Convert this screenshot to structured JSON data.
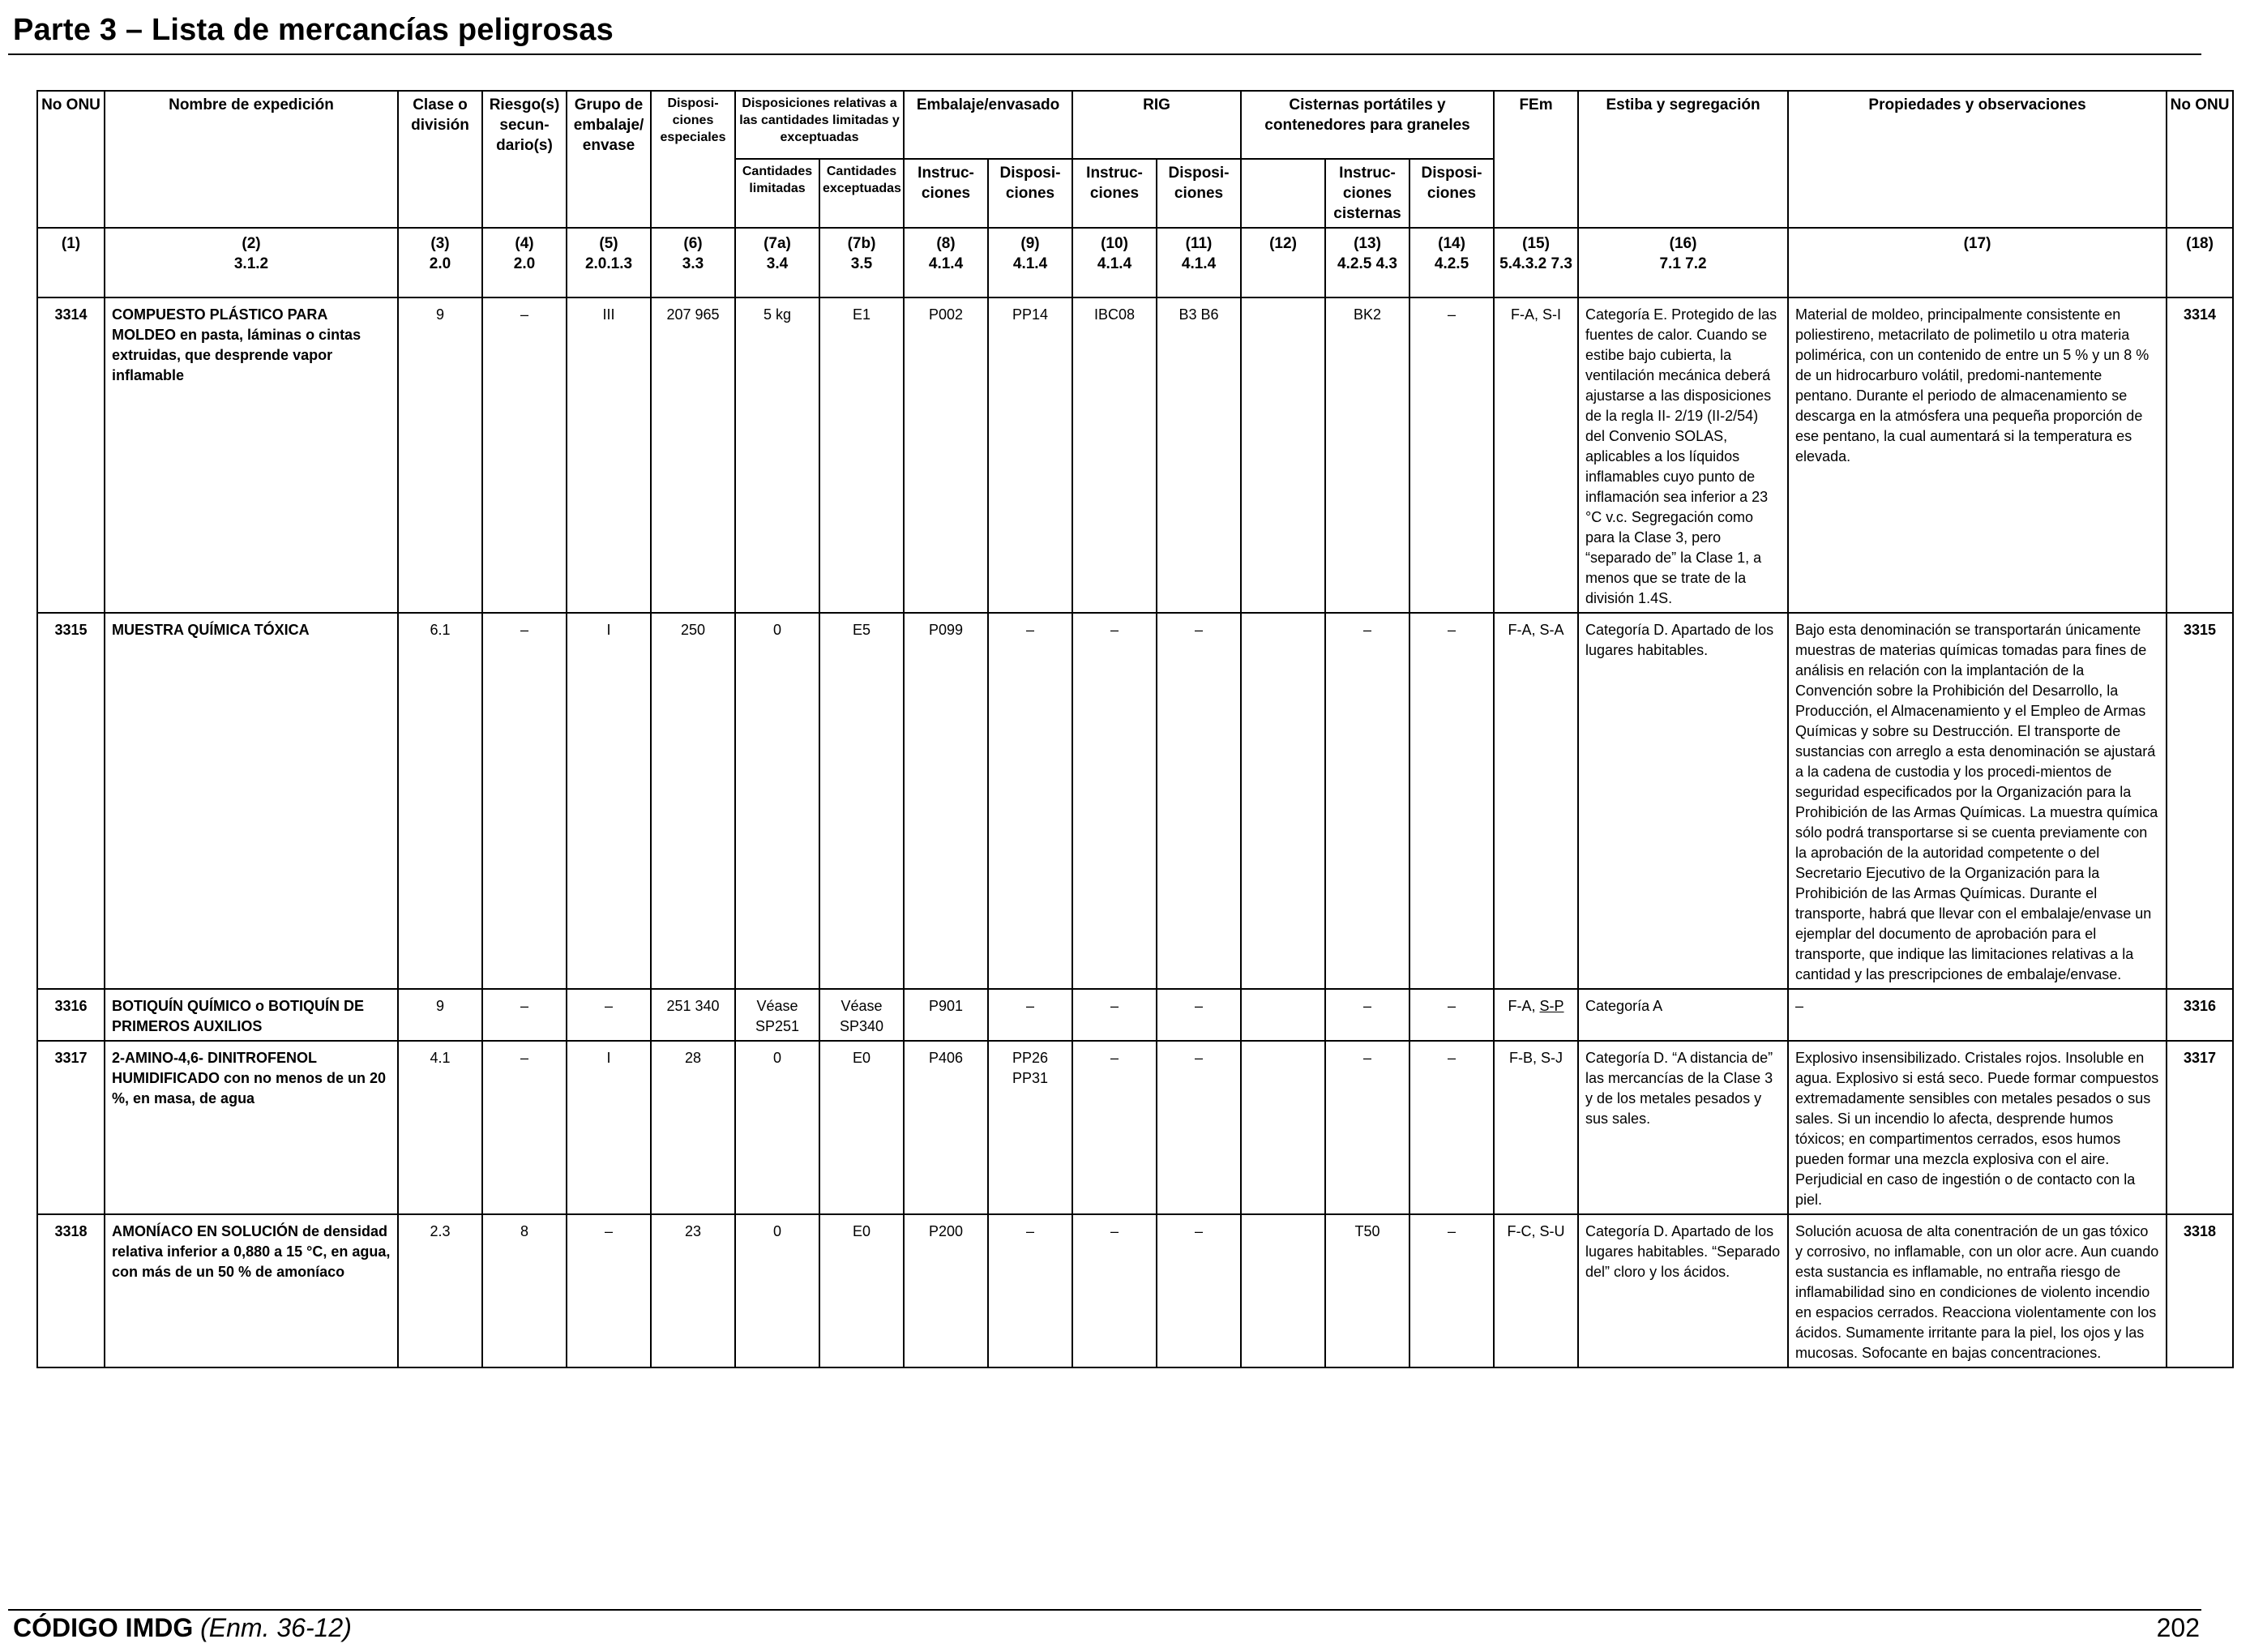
{
  "header": {
    "title": "Parte 3 – Lista de mercancías peligrosas"
  },
  "table": {
    "head": {
      "no_onu": "No ONU",
      "nombre": "Nombre de expedición",
      "clase": "Clase o división",
      "riesgo": "Riesgo(s) secun-dario(s)",
      "grupo": "Grupo de embalaje/ envase",
      "disp_esp": "Disposi-ciones especiales",
      "disp_rel": "Disposiciones relativas a las cantidades limitadas y exceptuadas",
      "cant_lim": "Cantidades limitadas",
      "cant_exc": "Cantidades exceptuadas",
      "embalaje": "Embalaje/envasado",
      "emb_instr": "Instruc-ciones",
      "emb_disp": "Disposi-ciones",
      "rig": "RIG",
      "rig_instr": "Instruc-ciones",
      "rig_disp": "Disposi-ciones",
      "cisternas": "Cisternas portátiles y contenedores para graneles",
      "cis_instr": "Instruc-ciones cisternas",
      "cis_disp": "Disposi-ciones",
      "fem": "FEm",
      "estiba": "Estiba y segregación",
      "propiedades": "Propiedades y observaciones",
      "no_onu_end": "No ONU"
    },
    "numbers": [
      {
        "n": "(1)",
        "ref": ""
      },
      {
        "n": "(2)",
        "ref": "3.1.2"
      },
      {
        "n": "(3)",
        "ref": "2.0"
      },
      {
        "n": "(4)",
        "ref": "2.0"
      },
      {
        "n": "(5)",
        "ref": "2.0.1.3"
      },
      {
        "n": "(6)",
        "ref": "3.3"
      },
      {
        "n": "(7a)",
        "ref": "3.4"
      },
      {
        "n": "(7b)",
        "ref": "3.5"
      },
      {
        "n": "(8)",
        "ref": "4.1.4"
      },
      {
        "n": "(9)",
        "ref": "4.1.4"
      },
      {
        "n": "(10)",
        "ref": "4.1.4"
      },
      {
        "n": "(11)",
        "ref": "4.1.4"
      },
      {
        "n": "(12)",
        "ref": ""
      },
      {
        "n": "(13)",
        "ref": "4.2.5 4.3"
      },
      {
        "n": "(14)",
        "ref": "4.2.5"
      },
      {
        "n": "(15)",
        "ref": "5.4.3.2 7.3"
      },
      {
        "n": "(16)",
        "ref": "7.1 7.2"
      },
      {
        "n": "(17)",
        "ref": ""
      },
      {
        "n": "(18)",
        "ref": ""
      }
    ],
    "rows": [
      {
        "un": "3314",
        "name": "COMPUESTO PLÁSTICO PARA MOLDEO en pasta, láminas o cintas extruidas, que desprende vapor inflamable",
        "class": "9",
        "sub_risk": "–",
        "pg": "III",
        "sp": "207 965",
        "lq": "5 kg",
        "eq": "E1",
        "pack_instr": "P002",
        "pack_prov": "PP14",
        "ibc_instr": "IBC08",
        "ibc_prov": "B3 B6",
        "col12": "",
        "tank_instr": "BK2",
        "tank_prov": "–",
        "ems": "F-A, S-I",
        "stowage": "Categoría E. Protegido de las fuentes de calor. Cuando se estibe bajo cubierta, la ventilación mecánica deberá ajustarse a las disposiciones de la regla II- 2/19 (II-2/54) del Convenio SOLAS, aplicables a los líquidos inflamables cuyo punto de inflamación sea inferior a 23 °C v.c. Segregación como para la Clase 3, pero “separado de” la Clase 1, a menos que se trate de la división 1.4S.",
        "props": "Material de moldeo, principalmente consistente en poliestireno, metacrilato de polimetilo u otra materia polimérica, con un contenido de entre un 5 % y un 8 % de un hidrocarburo volátil, predomi-nantemente pentano. Durante el periodo de almacenamiento se descarga en la atmósfera una pequeña proporción de ese pentano, la cual aumentará si la temperatura es elevada.",
        "un_end": "3314"
      },
      {
        "un": "3315",
        "name": "MUESTRA QUÍMICA TÓXICA",
        "class": "6.1",
        "sub_risk": "–",
        "pg": "I",
        "sp": "250",
        "lq": "0",
        "eq": "E5",
        "pack_instr": "P099",
        "pack_prov": "–",
        "ibc_instr": "–",
        "ibc_prov": "–",
        "col12": "",
        "tank_instr": "–",
        "tank_prov": "–",
        "ems": "F-A, S-A",
        "stowage": "Categoría D. Apartado de los lugares habitables.",
        "props": "Bajo esta denominación se transportarán únicamente muestras de materias químicas tomadas para fines de análisis en relación con la implantación de la Convención sobre la Prohibición del Desarrollo, la Producción, el Almacenamiento y el Empleo de Armas Químicas y sobre su Destrucción. El transporte de sustancias con arreglo a esta denominación se ajustará a la cadena de custodia y los procedi-mientos de seguridad especificados por la Organización para la Prohibición de las Armas Químicas. La muestra química sólo podrá transportarse si se cuenta previamente con la aprobación de la autoridad competente o del Secretario Ejecutivo de la Organización para la Prohibición de las Armas Químicas. Durante el transporte, habrá que llevar con el embalaje/envase un ejemplar del documento de aprobación para el transporte, que indique las limitaciones relativas a la cantidad y las prescripciones de embalaje/envase.",
        "un_end": "3315"
      },
      {
        "un": "3316",
        "name": "BOTIQUÍN QUÍMICO o BOTIQUÍN DE PRIMEROS AUXILIOS",
        "class": "9",
        "sub_risk": "–",
        "pg": "–",
        "sp": "251 340",
        "lq": "Véase SP251",
        "eq": "Véase SP340",
        "pack_instr": "P901",
        "pack_prov": "–",
        "ibc_instr": "–",
        "ibc_prov": "–",
        "col12": "",
        "tank_instr": "–",
        "tank_prov": "–",
        "ems_a": "F-A, ",
        "ems_b": "S-P",
        "stowage": "Categoría A",
        "props": "–",
        "un_end": "3316"
      },
      {
        "un": "3317",
        "name": "2-AMINO-4,6- DINITROFENOL HUMIDIFICADO con no menos de un 20 %, en masa, de agua",
        "class": "4.1",
        "sub_risk": "–",
        "pg": "I",
        "sp": "28",
        "lq": "0",
        "eq": "E0",
        "pack_instr": "P406",
        "pack_prov": "PP26 PP31",
        "ibc_instr": "–",
        "ibc_prov": "–",
        "col12": "",
        "tank_instr": "–",
        "tank_prov": "–",
        "ems": "F-B, S-J",
        "stowage": "Categoría D. “A distancia de” las mercancías de la Clase 3 y de los metales pesados y sus sales.",
        "props": "Explosivo insensibilizado. Cristales rojos. Insoluble en agua. Explosivo si está seco. Puede formar compuestos extremadamente sensibles con metales pesados o sus sales. Si un incendio lo afecta, desprende humos tóxicos; en compartimentos cerrados, esos humos pueden formar una mezcla explosiva con el aire. Perjudicial en caso de ingestión o de contacto con la piel.",
        "un_end": "3317"
      },
      {
        "un": "3318",
        "name": "AMONÍACO EN SOLUCIÓN de densidad relativa inferior a 0,880 a 15 °C, en agua, con más de un 50 % de amoníaco",
        "class": "2.3",
        "sub_risk": "8",
        "pg": "–",
        "sp": "23",
        "lq": "0",
        "eq": "E0",
        "pack_instr": "P200",
        "pack_prov": "–",
        "ibc_instr": "–",
        "ibc_prov": "–",
        "col12": "",
        "tank_instr": "T50",
        "tank_prov": "–",
        "ems": "F-C, S-U",
        "stowage": "Categoría D. Apartado de los lugares habitables. “Separado del” cloro y los ácidos.",
        "props": "Solución acuosa de alta conentración de un gas tóxico y corrosivo, no inflamable, con un olor acre. Aun cuando esta sustancia es inflamable, no entraña riesgo de inflamabilidad sino en condiciones de violento incendio en espacios cerrados. Reacciona violentamente con los ácidos. Sumamente irritante para la piel, los ojos y las mucosas. Sofocante en bajas concentraciones.",
        "un_end": "3318"
      }
    ]
  },
  "footer": {
    "code": "CÓDIGO IMDG",
    "amendment": "(Enm. 36-12)",
    "page": "202"
  }
}
